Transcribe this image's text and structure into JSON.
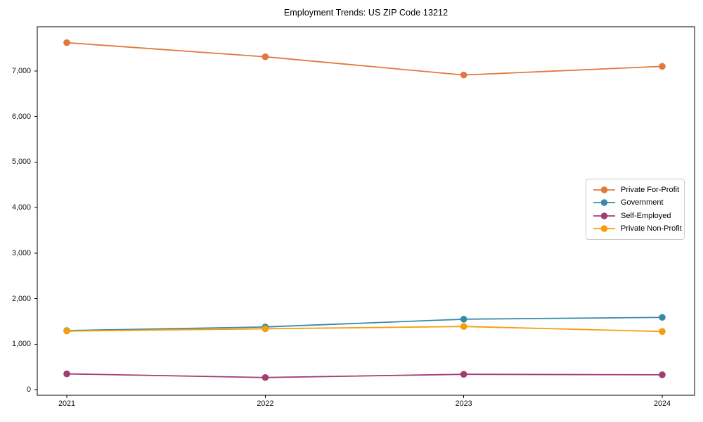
{
  "figure": {
    "background_color": "#ffffff",
    "axes_border_color": "#000000",
    "tick_label_color": "#111111",
    "legend_border_color": "#cccccc"
  },
  "chart_data": {
    "type": "line",
    "title": "Employment Trends: US ZIP Code 13212",
    "xlabel": "",
    "ylabel": "",
    "x": [
      2021,
      2022,
      2023,
      2024
    ],
    "x_tick_labels": [
      "2021",
      "2022",
      "2023",
      "2024"
    ],
    "y_ticks": [
      0,
      1000,
      2000,
      3000,
      4000,
      5000,
      6000,
      7000
    ],
    "y_tick_labels": [
      "0",
      "1,000",
      "2,000",
      "3,000",
      "4,000",
      "5,000",
      "6,000",
      "7,000"
    ],
    "ylim": [
      -120,
      7970
    ],
    "grid": false,
    "legend_position": "center-right",
    "marker": "circle",
    "series": [
      {
        "name": "Private For-Profit",
        "color": "#e2783e",
        "values": [
          7620,
          7310,
          6910,
          7100
        ]
      },
      {
        "name": "Government",
        "color": "#3b89a9",
        "values": [
          1300,
          1380,
          1550,
          1590
        ]
      },
      {
        "name": "Self-Employed",
        "color": "#a23c72",
        "values": [
          350,
          270,
          340,
          330
        ]
      },
      {
        "name": "Private Non-Profit",
        "color": "#f49d0d",
        "values": [
          1290,
          1340,
          1390,
          1280
        ]
      }
    ]
  }
}
